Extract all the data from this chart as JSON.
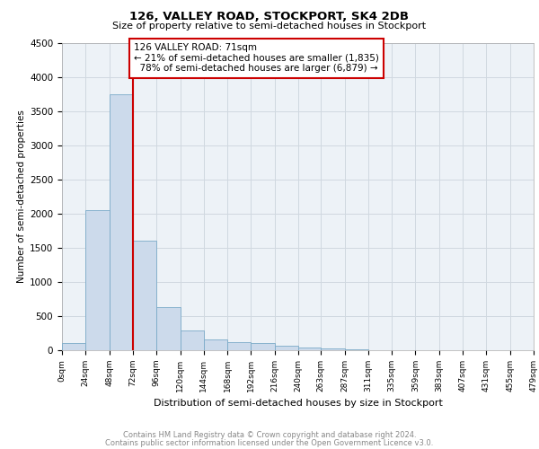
{
  "title": "126, VALLEY ROAD, STOCKPORT, SK4 2DB",
  "subtitle": "Size of property relative to semi-detached houses in Stockport",
  "xlabel": "Distribution of semi-detached houses by size in Stockport",
  "ylabel": "Number of semi-detached properties",
  "footnote1": "Contains HM Land Registry data © Crown copyright and database right 2024.",
  "footnote2": "Contains public sector information licensed under the Open Government Licence v3.0.",
  "annotation_line1": "126 VALLEY ROAD: 71sqm",
  "annotation_line2": "← 21% of semi-detached houses are smaller (1,835)",
  "annotation_line3": "  78% of semi-detached houses are larger (6,879) →",
  "property_size": 71,
  "bin_edges": [
    0,
    24,
    48,
    72,
    96,
    120,
    144,
    168,
    192,
    216,
    240,
    263,
    287,
    311,
    335,
    359,
    383,
    407,
    431,
    455,
    479
  ],
  "bar_heights": [
    100,
    2050,
    3750,
    1600,
    630,
    290,
    160,
    115,
    100,
    70,
    45,
    25,
    15,
    5,
    3,
    2,
    1,
    1,
    1,
    0
  ],
  "bar_color": "#ccdaeb",
  "bar_edge_color": "#7aaac8",
  "ylim": [
    0,
    4500
  ],
  "yticks": [
    0,
    500,
    1000,
    1500,
    2000,
    2500,
    3000,
    3500,
    4000,
    4500
  ],
  "xtick_labels": [
    "0sqm",
    "24sqm",
    "48sqm",
    "72sqm",
    "96sqm",
    "120sqm",
    "144sqm",
    "168sqm",
    "192sqm",
    "216sqm",
    "240sqm",
    "263sqm",
    "287sqm",
    "311sqm",
    "335sqm",
    "359sqm",
    "383sqm",
    "407sqm",
    "431sqm",
    "455sqm",
    "479sqm"
  ],
  "vline_x": 72,
  "vline_color": "#cc0000",
  "annotation_box_color": "#cc0000",
  "grid_color": "#d0d8e0",
  "background_color": "#edf2f7"
}
